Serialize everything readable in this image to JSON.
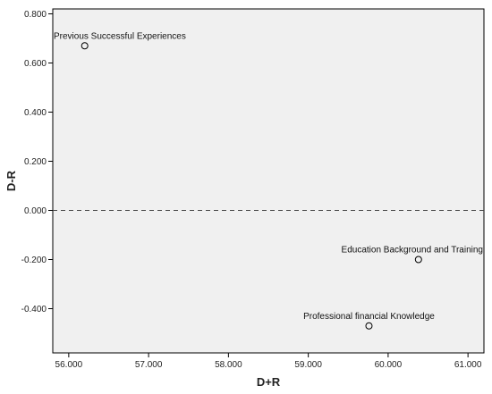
{
  "chart_data": {
    "type": "scatter",
    "title": "",
    "xlabel": "D+R",
    "ylabel": "D-R",
    "xlim": [
      55.8,
      61.2
    ],
    "ylim": [
      -0.58,
      0.82
    ],
    "x_ticks": [
      56.0,
      57.0,
      58.0,
      59.0,
      60.0,
      61.0
    ],
    "x_tick_labels": [
      "56.000",
      "57.000",
      "58.000",
      "59.000",
      "60.000",
      "61.000"
    ],
    "y_ticks": [
      0.8,
      0.6,
      0.4,
      0.2,
      0.0,
      -0.2,
      -0.4
    ],
    "y_tick_labels": [
      "0.800",
      "0.600",
      "0.400",
      "0.200",
      "0.000",
      "-0.200",
      "-0.400"
    ],
    "reference_line_y": 0.0,
    "grid": false,
    "points": [
      {
        "label": "Previous Successful Experiences",
        "x": 56.2,
        "y": 0.67
      },
      {
        "label": "Education Background and Training",
        "x": 60.38,
        "y": -0.2
      },
      {
        "label": "Professional financial Knowledge",
        "x": 59.76,
        "y": -0.47
      }
    ],
    "colors": {
      "plot_background": "#f0f0f0",
      "axis": "#000000",
      "marker_stroke": "#000000",
      "reference_line": "#444444"
    }
  }
}
